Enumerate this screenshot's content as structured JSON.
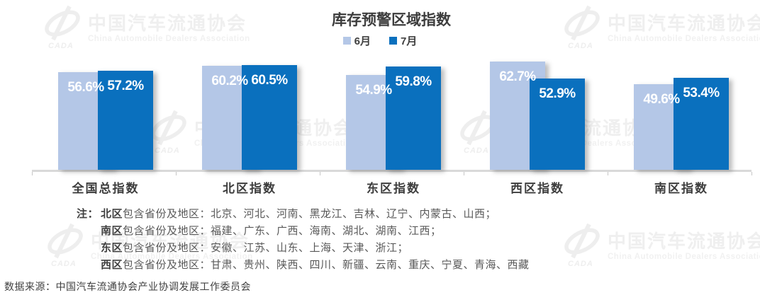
{
  "title": "库存预警区域指数",
  "chart_data": {
    "type": "bar",
    "categories": [
      "全国总指数",
      "北区指数",
      "东区指数",
      "西区指数",
      "南区指数"
    ],
    "series": [
      {
        "name": "6月",
        "color": "#b4c7e7",
        "values": [
          56.6,
          60.2,
          54.9,
          62.7,
          49.6
        ]
      },
      {
        "name": "7月",
        "color": "#0a70be",
        "values": [
          57.2,
          60.5,
          59.8,
          52.9,
          53.4
        ]
      }
    ],
    "value_suffix": "%",
    "ylim": [
      0,
      65
    ],
    "grid": false,
    "legend_position": "top",
    "axis_color": "#d9d9d9",
    "label_color": "#ffffff"
  },
  "watermark": {
    "logo_text": "CADA",
    "cn": "中国汽车流通协会",
    "en": "China Automobile Dealers Association"
  },
  "notes": {
    "prefix": "注：",
    "lines": [
      {
        "bold": "北区",
        "rest": "包含省份及地区：北京、河北、河南、黑龙江、吉林、辽宁、内蒙古、山西；"
      },
      {
        "bold": "南区",
        "rest": "包含省份及地区：福建、广东、广西、海南、湖北、湖南、江西；"
      },
      {
        "bold": "东区",
        "rest": "包含省份及地区：安徽、江苏、山东、上海、天津、浙江；"
      },
      {
        "bold": "西区",
        "rest": "包含省份及地区：甘肃、贵州、陕西、四川、新疆、云南、重庆、宁夏、青海、西藏"
      }
    ]
  },
  "source": "数据来源：中国汽车流通协会产业协调发展工作委员会"
}
